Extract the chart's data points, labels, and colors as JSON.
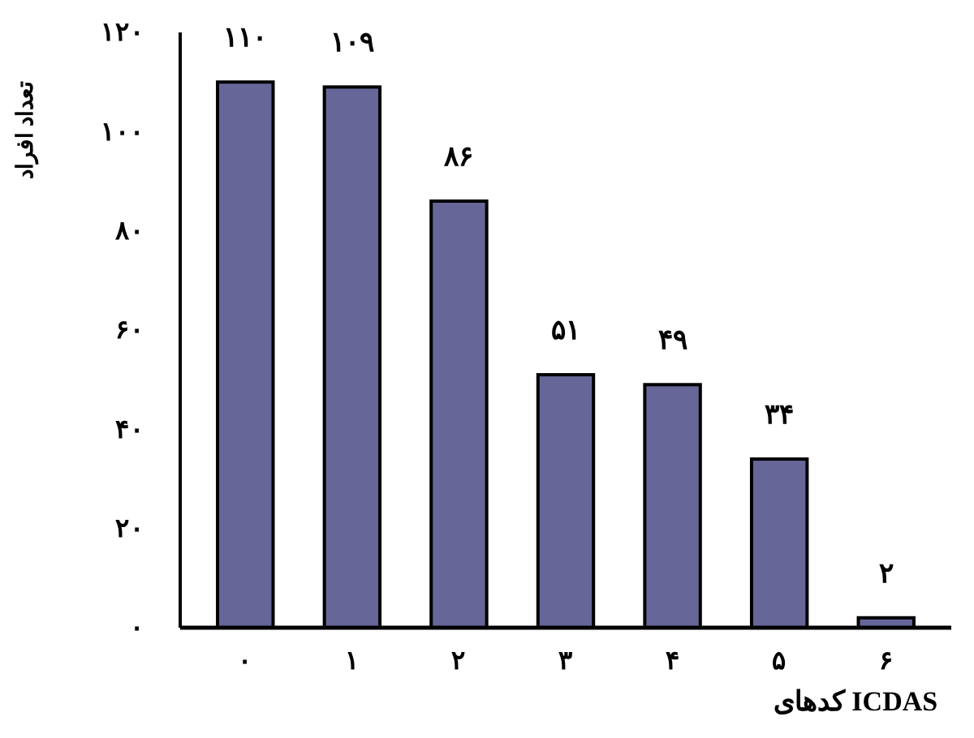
{
  "chart_data": {
    "type": "bar",
    "xlabel": "کدهای ICDAS",
    "ylabel": "تعداد افراد",
    "categories": [
      "۰",
      "۱",
      "۲",
      "۳",
      "۴",
      "۵",
      "۶"
    ],
    "values": [
      110,
      109,
      86,
      51,
      49,
      34,
      2
    ],
    "value_labels": [
      "۱۱۰",
      "۱۰۹",
      "۸۶",
      "۵۱",
      "۴۹",
      "۳۴",
      "۲"
    ],
    "color": "#666699",
    "ylim": [
      0,
      120
    ],
    "yticks": [
      {
        "value": 0,
        "label": "۰"
      },
      {
        "value": 20,
        "label": "۲۰"
      },
      {
        "value": 40,
        "label": "۴۰"
      },
      {
        "value": 60,
        "label": "۶۰"
      },
      {
        "value": 80,
        "label": "۸۰"
      },
      {
        "value": 100,
        "label": "۱۰۰"
      },
      {
        "value": 120,
        "label": "۱۲۰"
      }
    ],
    "grid": false
  }
}
